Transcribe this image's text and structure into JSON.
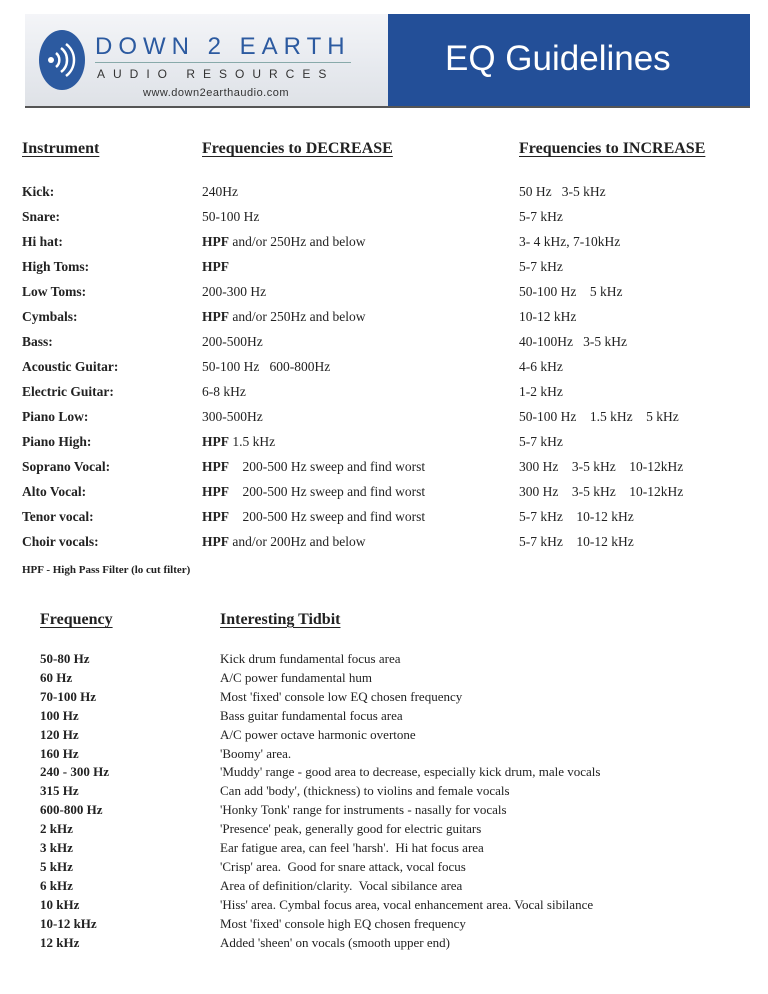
{
  "header": {
    "brand_line1": "DOWN 2 EARTH",
    "brand_line2": "AUDIO RESOURCES",
    "website": "www.down2earthaudio.com",
    "title": "EQ Guidelines",
    "brand_color": "#234f98"
  },
  "eq_table": {
    "headers": [
      "Instrument",
      "Frequencies to DECREASE",
      "Frequencies to INCREASE"
    ],
    "rows": [
      {
        "instrument": "Kick:",
        "decrease_bold": "",
        "decrease": "240Hz",
        "increase": "50 Hz   3-5 kHz"
      },
      {
        "instrument": "Snare:",
        "decrease_bold": "",
        "decrease": "50-100 Hz",
        "increase": "5-7 kHz"
      },
      {
        "instrument": "Hi hat:",
        "decrease_bold": "HPF",
        "decrease": " and/or 250Hz and below",
        "increase": "3- 4 kHz, 7-10kHz"
      },
      {
        "instrument": "High Toms:",
        "decrease_bold": "HPF",
        "decrease": "",
        "increase": "5-7 kHz"
      },
      {
        "instrument": "Low Toms:",
        "decrease_bold": "",
        "decrease": "200-300 Hz",
        "increase": "50-100 Hz    5 kHz"
      },
      {
        "instrument": "Cymbals:",
        "decrease_bold": "HPF",
        "decrease": " and/or 250Hz and below",
        "increase": "10-12 kHz"
      },
      {
        "instrument": "Bass:",
        "decrease_bold": "",
        "decrease": "200-500Hz",
        "increase": "40-100Hz   3-5 kHz"
      },
      {
        "instrument": "Acoustic Guitar:",
        "decrease_bold": "",
        "decrease": "50-100 Hz   600-800Hz",
        "increase": "4-6 kHz"
      },
      {
        "instrument": "Electric Guitar:",
        "decrease_bold": "",
        "decrease": "6-8 kHz",
        "increase": "1-2 kHz"
      },
      {
        "instrument": "Piano Low:",
        "decrease_bold": "",
        "decrease": "300-500Hz",
        "increase": "50-100 Hz    1.5 kHz    5 kHz"
      },
      {
        "instrument": "Piano High:",
        "decrease_bold": "HPF",
        "decrease": " 1.5 kHz",
        "increase": "5-7 kHz"
      },
      {
        "instrument": "Soprano Vocal:",
        "decrease_bold": "HPF",
        "decrease": "    200-500 Hz sweep and find worst",
        "increase": "300 Hz    3-5 kHz    10-12kHz"
      },
      {
        "instrument": "Alto Vocal:",
        "decrease_bold": "HPF",
        "decrease": "    200-500 Hz sweep and find worst",
        "increase": "300 Hz    3-5 kHz    10-12kHz"
      },
      {
        "instrument": "Tenor vocal:",
        "decrease_bold": "HPF",
        "decrease": "    200-500 Hz sweep and find worst",
        "increase": "5-7 kHz    10-12 kHz"
      },
      {
        "instrument": "Choir vocals:",
        "decrease_bold": "HPF",
        "decrease": " and/or 200Hz and below",
        "increase": "5-7 kHz    10-12 kHz"
      }
    ],
    "footnote": "HPF - High Pass Filter (lo cut filter)"
  },
  "tidbits": {
    "headers": [
      "Frequency",
      "Interesting Tidbit"
    ],
    "rows": [
      {
        "freq": "50-80 Hz",
        "text": "Kick drum fundamental focus area"
      },
      {
        "freq": "60 Hz",
        "text": "A/C power fundamental hum"
      },
      {
        "freq": "70-100 Hz",
        "text": "Most 'fixed' console low EQ chosen frequency"
      },
      {
        "freq": "100 Hz",
        "text": "Bass guitar fundamental focus area"
      },
      {
        "freq": "120 Hz",
        "text": "A/C power octave harmonic overtone"
      },
      {
        "freq": "160 Hz",
        "text": "'Boomy' area."
      },
      {
        "freq": "240 - 300 Hz",
        "text": "'Muddy' range - good area to decrease, especially kick drum, male vocals"
      },
      {
        "freq": "315 Hz",
        "text": "Can add 'body', (thickness) to violins and female vocals"
      },
      {
        "freq": "600-800 Hz",
        "text": "'Honky Tonk' range for instruments - nasally for vocals"
      },
      {
        "freq": "2 kHz",
        "text": "'Presence' peak, generally good for electric guitars"
      },
      {
        "freq": "3 kHz",
        "text": "Ear fatigue area, can feel 'harsh'.  Hi hat focus area"
      },
      {
        "freq": "5 kHz",
        "text": "'Crisp' area.  Good for snare attack, vocal focus"
      },
      {
        "freq": "6 kHz",
        "text": "Area of definition/clarity.  Vocal sibilance area"
      },
      {
        "freq": "10 kHz",
        "text": "'Hiss' area. Cymbal focus area, vocal enhancement area. Vocal sibilance"
      },
      {
        "freq": "10-12 kHz",
        "text": "Most 'fixed' console high EQ chosen frequency"
      },
      {
        "freq": "12 kHz",
        "text": "Added 'sheen' on vocals (smooth upper end)"
      }
    ]
  }
}
